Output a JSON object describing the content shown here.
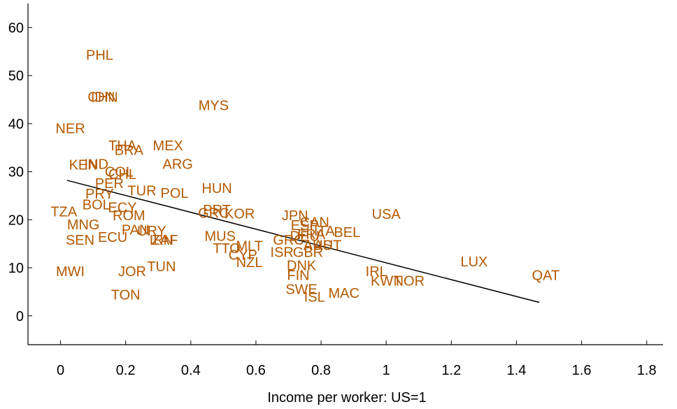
{
  "chart_data": {
    "type": "scatter",
    "title": "",
    "xlabel": "Income per worker: US=1",
    "ylabel": "",
    "xlim": [
      -0.1,
      1.85
    ],
    "ylim": [
      -6,
      65
    ],
    "xticks": [
      "0",
      "0.2",
      "0.4",
      "0.6",
      "0.8",
      "1",
      "1.2",
      "1.4",
      "1.6",
      "1.8"
    ],
    "yticks": [
      "0",
      "10",
      "20",
      "30",
      "40",
      "50",
      "60"
    ],
    "grid": false,
    "marker_color": "#b35900",
    "fit_line": {
      "x": [
        0.02,
        1.47
      ],
      "y": [
        28.2,
        2.8
      ],
      "color": "#000000"
    },
    "points": [
      {
        "label": "PHL",
        "x": 0.12,
        "y": 54.3
      },
      {
        "label": "CHN",
        "x": 0.13,
        "y": 45.6
      },
      {
        "label": "IDN",
        "x": 0.13,
        "y": 45.6
      },
      {
        "label": "MYS",
        "x": 0.47,
        "y": 43.8
      },
      {
        "label": "NER",
        "x": 0.03,
        "y": 39.0
      },
      {
        "label": "THA",
        "x": 0.19,
        "y": 35.5
      },
      {
        "label": "BRA",
        "x": 0.21,
        "y": 34.5
      },
      {
        "label": "MEX",
        "x": 0.33,
        "y": 35.5
      },
      {
        "label": "ARG",
        "x": 0.36,
        "y": 31.6
      },
      {
        "label": "KEN",
        "x": 0.07,
        "y": 31.5
      },
      {
        "label": "IND",
        "x": 0.11,
        "y": 31.6
      },
      {
        "label": "COL",
        "x": 0.18,
        "y": 30.0
      },
      {
        "label": "CHL",
        "x": 0.19,
        "y": 29.5
      },
      {
        "label": "PER",
        "x": 0.15,
        "y": 27.6
      },
      {
        "label": "TUR",
        "x": 0.25,
        "y": 26.1
      },
      {
        "label": "POL",
        "x": 0.35,
        "y": 25.6
      },
      {
        "label": "HUN",
        "x": 0.48,
        "y": 26.6
      },
      {
        "label": "PRY",
        "x": 0.12,
        "y": 25.4
      },
      {
        "label": "BOL",
        "x": 0.11,
        "y": 23.2
      },
      {
        "label": "TZA",
        "x": 0.01,
        "y": 21.7
      },
      {
        "label": "ECY",
        "x": 0.19,
        "y": 22.6
      },
      {
        "label": "ROM",
        "x": 0.21,
        "y": 20.9
      },
      {
        "label": "PRT",
        "x": 0.48,
        "y": 22.1
      },
      {
        "label": "GRC",
        "x": 0.47,
        "y": 21.4
      },
      {
        "label": "KOR",
        "x": 0.55,
        "y": 21.3
      },
      {
        "label": "MNG",
        "x": 0.07,
        "y": 19.0
      },
      {
        "label": "PAN",
        "x": 0.23,
        "y": 17.9
      },
      {
        "label": "URY",
        "x": 0.28,
        "y": 17.7
      },
      {
        "label": "ECU",
        "x": 0.16,
        "y": 16.4
      },
      {
        "label": "SEN",
        "x": 0.06,
        "y": 15.8
      },
      {
        "label": "IRN",
        "x": 0.31,
        "y": 15.8
      },
      {
        "label": "ZAF",
        "x": 0.32,
        "y": 15.8
      },
      {
        "label": "MUS",
        "x": 0.49,
        "y": 16.6
      },
      {
        "label": "TTO",
        "x": 0.51,
        "y": 14.1
      },
      {
        "label": "MLT",
        "x": 0.58,
        "y": 14.6
      },
      {
        "label": "CYP",
        "x": 0.56,
        "y": 12.7
      },
      {
        "label": "NZL",
        "x": 0.58,
        "y": 11.2
      },
      {
        "label": "JPN",
        "x": 0.72,
        "y": 20.9
      },
      {
        "label": "ESP",
        "x": 0.75,
        "y": 18.9
      },
      {
        "label": "CAN",
        "x": 0.78,
        "y": 19.5
      },
      {
        "label": "ITA",
        "x": 0.81,
        "y": 17.7
      },
      {
        "label": "FRA",
        "x": 0.77,
        "y": 17.0
      },
      {
        "label": "DEU",
        "x": 0.75,
        "y": 16.6
      },
      {
        "label": "GRC",
        "x": 0.7,
        "y": 15.8
      },
      {
        "label": "AUS",
        "x": 0.79,
        "y": 14.7
      },
      {
        "label": "AUT",
        "x": 0.82,
        "y": 14.7
      },
      {
        "label": "BEL",
        "x": 0.88,
        "y": 17.4
      },
      {
        "label": "USA",
        "x": 1.0,
        "y": 21.2
      },
      {
        "label": "ISR",
        "x": 0.68,
        "y": 13.3
      },
      {
        "label": "GBR",
        "x": 0.76,
        "y": 13.3
      },
      {
        "label": "DNK",
        "x": 0.74,
        "y": 10.5
      },
      {
        "label": "FIN",
        "x": 0.73,
        "y": 8.5
      },
      {
        "label": "SWE",
        "x": 0.74,
        "y": 5.6
      },
      {
        "label": "ISL",
        "x": 0.78,
        "y": 4.0
      },
      {
        "label": "MAC",
        "x": 0.87,
        "y": 4.8
      },
      {
        "label": "IRL",
        "x": 0.97,
        "y": 9.3
      },
      {
        "label": "KWT",
        "x": 1.0,
        "y": 7.3
      },
      {
        "label": "NOR",
        "x": 1.07,
        "y": 7.3
      },
      {
        "label": "LUX",
        "x": 1.27,
        "y": 11.3
      },
      {
        "label": "QAT",
        "x": 1.49,
        "y": 8.5
      },
      {
        "label": "MWI",
        "x": 0.03,
        "y": 9.3
      },
      {
        "label": "JOR",
        "x": 0.22,
        "y": 9.3
      },
      {
        "label": "TUN",
        "x": 0.31,
        "y": 10.3
      },
      {
        "label": "TON",
        "x": 0.2,
        "y": 4.4
      }
    ]
  }
}
